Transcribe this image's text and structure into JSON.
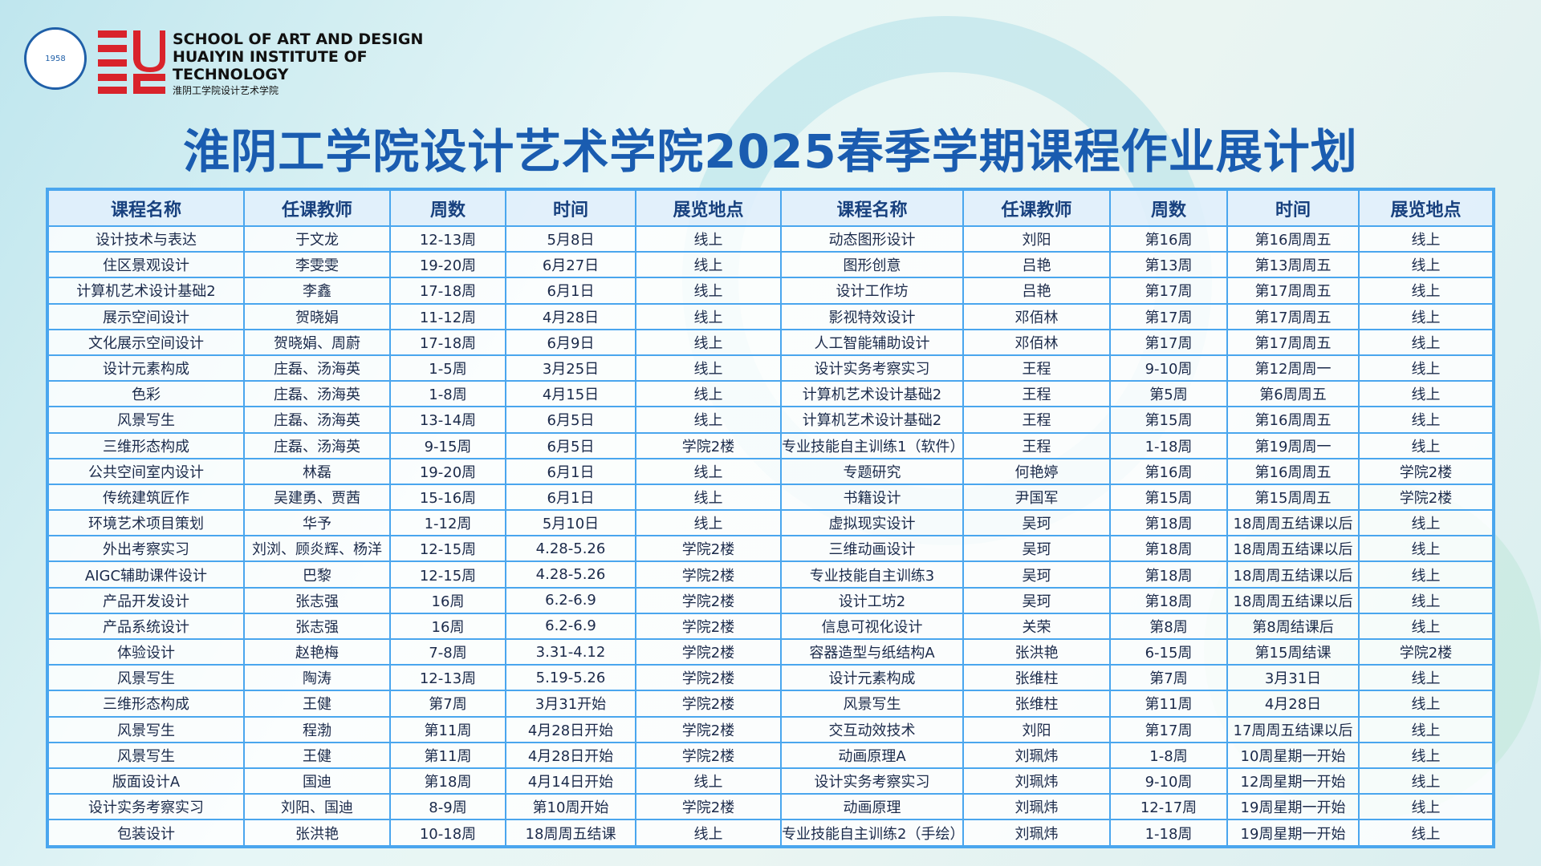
{
  "header": {
    "seal_year": "1958",
    "logo_lines": [
      "SCHOOL OF ART AND DESIGN",
      "HUAIYIN INSTITUTE OF",
      "TECHNOLOGY"
    ],
    "logo_cn": "淮阴工学院设计艺术学院",
    "title": "淮阴工学院设计艺术学院2025春季学期课程作业展计划"
  },
  "table": {
    "headers": [
      "课程名称",
      "任课教师",
      "周数",
      "时间",
      "展览地点",
      "课程名称",
      "任课教师",
      "周数",
      "时间",
      "展览地点"
    ],
    "rows": [
      [
        "设计技术与表达",
        "于文龙",
        "12-13周",
        "5月8日",
        "线上",
        "动态图形设计",
        "刘阳",
        "第16周",
        "第16周周五",
        "线上"
      ],
      [
        "住区景观设计",
        "李雯雯",
        "19-20周",
        "6月27日",
        "线上",
        "图形创意",
        "吕艳",
        "第13周",
        "第13周周五",
        "线上"
      ],
      [
        "计算机艺术设计基础2",
        "李鑫",
        "17-18周",
        "6月1日",
        "线上",
        "设计工作坊",
        "吕艳",
        "第17周",
        "第17周周五",
        "线上"
      ],
      [
        "展示空间设计",
        "贺晓娟",
        "11-12周",
        "4月28日",
        "线上",
        "影视特效设计",
        "邓佰林",
        "第17周",
        "第17周周五",
        "线上"
      ],
      [
        "文化展示空间设计",
        "贺晓娟、周蔚",
        "17-18周",
        "6月9日",
        "线上",
        "人工智能辅助设计",
        "邓佰林",
        "第17周",
        "第17周周五",
        "线上"
      ],
      [
        "设计元素构成",
        "庄磊、汤海英",
        "1-5周",
        "3月25日",
        "线上",
        "设计实务考察实习",
        "王程",
        "9-10周",
        "第12周周一",
        "线上"
      ],
      [
        "色彩",
        "庄磊、汤海英",
        "1-8周",
        "4月15日",
        "线上",
        "计算机艺术设计基础2",
        "王程",
        "第5周",
        "第6周周五",
        "线上"
      ],
      [
        "风景写生",
        "庄磊、汤海英",
        "13-14周",
        "6月5日",
        "线上",
        "计算机艺术设计基础2",
        "王程",
        "第15周",
        "第16周周五",
        "线上"
      ],
      [
        "三维形态构成",
        "庄磊、汤海英",
        "9-15周",
        "6月5日",
        "学院2楼",
        "专业技能自主训练1（软件）",
        "王程",
        "1-18周",
        "第19周周一",
        "线上"
      ],
      [
        "公共空间室内设计",
        "林磊",
        "19-20周",
        "6月1日",
        "线上",
        "专题研究",
        "何艳婷",
        "第16周",
        "第16周周五",
        "学院2楼"
      ],
      [
        "传统建筑匠作",
        "吴建勇、贾茜",
        "15-16周",
        "6月1日",
        "线上",
        "书籍设计",
        "尹国军",
        "第15周",
        "第15周周五",
        "学院2楼"
      ],
      [
        "环境艺术项目策划",
        "华予",
        "1-12周",
        "5月10日",
        "线上",
        "虚拟现实设计",
        "吴珂",
        "第18周",
        "18周周五结课以后",
        "线上"
      ],
      [
        "外出考察实习",
        "刘浏、顾炎辉、杨洋",
        "12-15周",
        "4.28-5.26",
        "学院2楼",
        "三维动画设计",
        "吴珂",
        "第18周",
        "18周周五结课以后",
        "线上"
      ],
      [
        "AIGC辅助课件设计",
        "巴黎",
        "12-15周",
        "4.28-5.26",
        "学院2楼",
        "专业技能自主训练3",
        "吴珂",
        "第18周",
        "18周周五结课以后",
        "线上"
      ],
      [
        "产品开发设计",
        "张志强",
        "16周",
        "6.2-6.9",
        "学院2楼",
        "设计工坊2",
        "吴珂",
        "第18周",
        "18周周五结课以后",
        "线上"
      ],
      [
        "产品系统设计",
        "张志强",
        "16周",
        "6.2-6.9",
        "学院2楼",
        "信息可视化设计",
        "关荣",
        "第8周",
        "第8周结课后",
        "线上"
      ],
      [
        "体验设计",
        "赵艳梅",
        "7-8周",
        "3.31-4.12",
        "学院2楼",
        "容器造型与纸结构A",
        "张洪艳",
        "6-15周",
        "第15周结课",
        "学院2楼"
      ],
      [
        "风景写生",
        "陶涛",
        "12-13周",
        "5.19-5.26",
        "学院2楼",
        "设计元素构成",
        "张维柱",
        "第7周",
        "3月31日",
        "线上"
      ],
      [
        "三维形态构成",
        "王健",
        "第7周",
        "3月31开始",
        "学院2楼",
        "风景写生",
        "张维柱",
        "第11周",
        "4月28日",
        "线上"
      ],
      [
        "风景写生",
        "程渤",
        "第11周",
        "4月28日开始",
        "学院2楼",
        "交互动效技术",
        "刘阳",
        "第17周",
        "17周周五结课以后",
        "线上"
      ],
      [
        "风景写生",
        "王健",
        "第11周",
        "4月28日开始",
        "学院2楼",
        "动画原理A",
        "刘珮炜",
        "1-8周",
        "10周星期一开始",
        "线上"
      ],
      [
        "版面设计A",
        "国迪",
        "第18周",
        "4月14日开始",
        "线上",
        "设计实务考察实习",
        "刘珮炜",
        "9-10周",
        "12周星期一开始",
        "线上"
      ],
      [
        "设计实务考察实习",
        "刘阳、国迪",
        "8-9周",
        "第10周开始",
        "学院2楼",
        "动画原理",
        "刘珮炜",
        "12-17周",
        "19周星期一开始",
        "线上"
      ],
      [
        "包装设计",
        "张洪艳",
        "10-18周",
        "18周周五结课",
        "线上",
        "专业技能自主训练2（手绘）",
        "刘珮炜",
        "1-18周",
        "19周星期一开始",
        "线上"
      ]
    ]
  }
}
